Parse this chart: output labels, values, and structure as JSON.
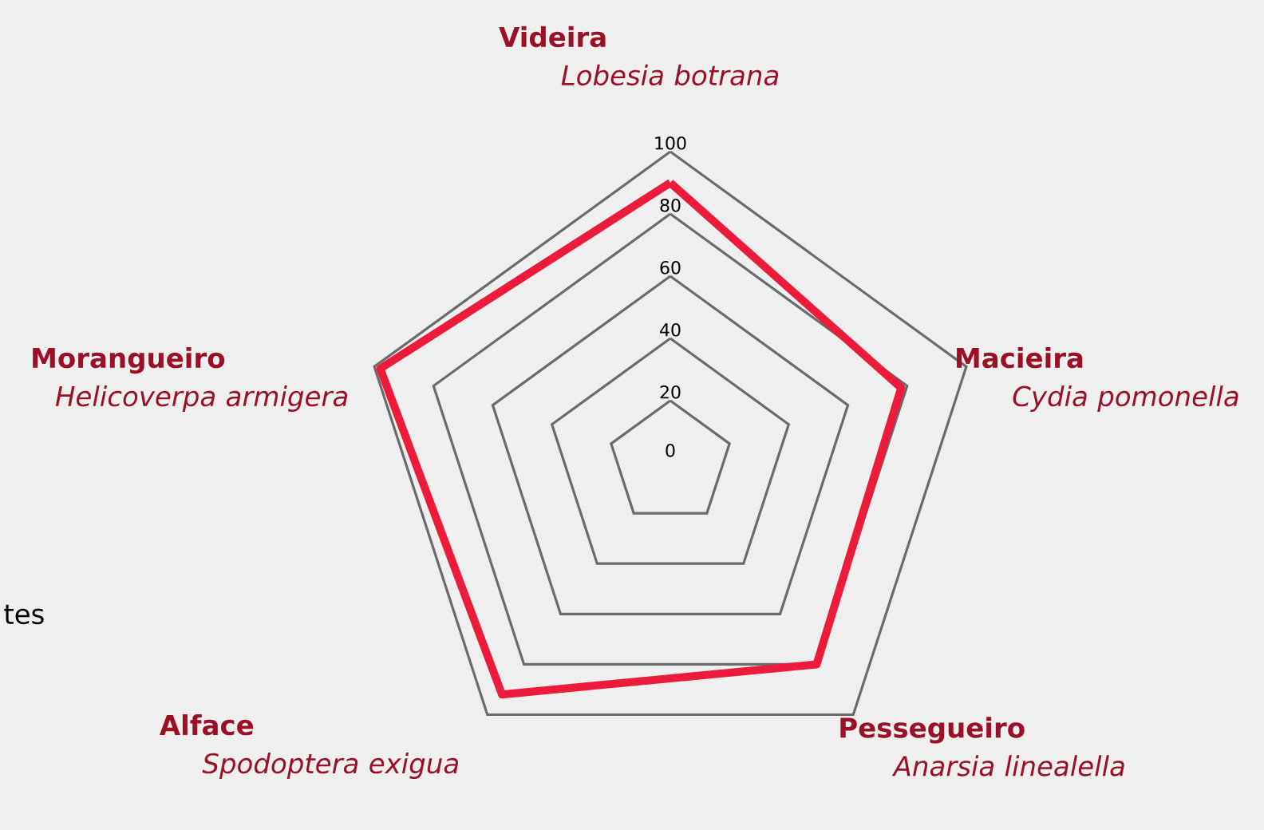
{
  "chart_data": {
    "type": "radar",
    "categories": [
      "**Videira** *Lobesia botrana*",
      "**Macieira** *Cydia pomonella*",
      "**Pessegueiro** *Anarsia linealella*",
      "**Alface** *Spodoptera exigua*",
      "**Morangueiro** *Helicoverpa armigera*"
    ],
    "series": [
      {
        "color": "#ec1a3b",
        "values": [
          90,
          78,
          80,
          92,
          98
        ]
      }
    ],
    "ylim": [
      0,
      100
    ],
    "yticks": [
      0,
      20,
      40,
      60,
      80,
      100
    ],
    "grid": true,
    "annotations": [
      "tes"
    ]
  }
}
